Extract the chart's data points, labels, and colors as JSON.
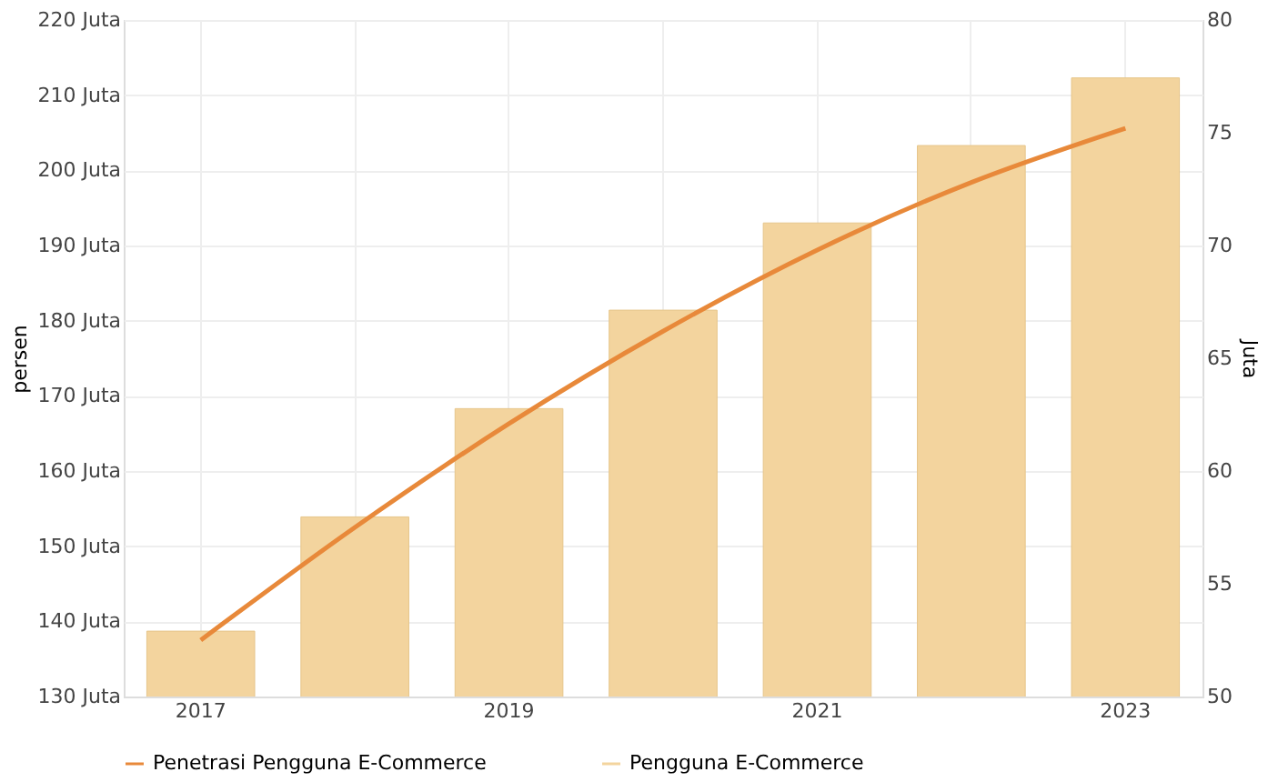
{
  "chart_data": {
    "type": "bar",
    "categories": [
      "2017",
      null,
      "2019",
      null,
      "2021",
      null,
      "2023"
    ],
    "ylabel": "persen",
    "y2label": "Juta",
    "ylim": [
      130,
      220
    ],
    "yticks": [
      {
        "value": 130,
        "label": "130 Juta"
      },
      {
        "value": 140,
        "label": "140 Juta"
      },
      {
        "value": 150,
        "label": "150 Juta"
      },
      {
        "value": 160,
        "label": "160 Juta"
      },
      {
        "value": 170,
        "label": "170 Juta"
      },
      {
        "value": 180,
        "label": "180 Juta"
      },
      {
        "value": 190,
        "label": "190 Juta"
      },
      {
        "value": 200,
        "label": "200 Juta"
      },
      {
        "value": 210,
        "label": "210 Juta"
      },
      {
        "value": 220,
        "label": "220 Juta"
      }
    ],
    "y2lim": [
      50,
      80
    ],
    "y2ticks": [
      50,
      55,
      60,
      65,
      70,
      75,
      80
    ],
    "series": [
      {
        "name": "Penetrasi Pengguna E-Commerce",
        "type": "line",
        "axis": "y2",
        "color": "#e8893a",
        "values": [
          52.5,
          57.5,
          62.1,
          66.2,
          69.8,
          72.8,
          75.2
        ]
      },
      {
        "name": "Pengguna E-Commerce",
        "type": "bar",
        "color": "#f3d49e",
        "values": [
          138.7,
          153.9,
          168.3,
          181.4,
          193.0,
          203.3,
          212.3
        ]
      }
    ],
    "grid": true,
    "legend": "bottom",
    "line_style": "solid",
    "marker": "none"
  }
}
